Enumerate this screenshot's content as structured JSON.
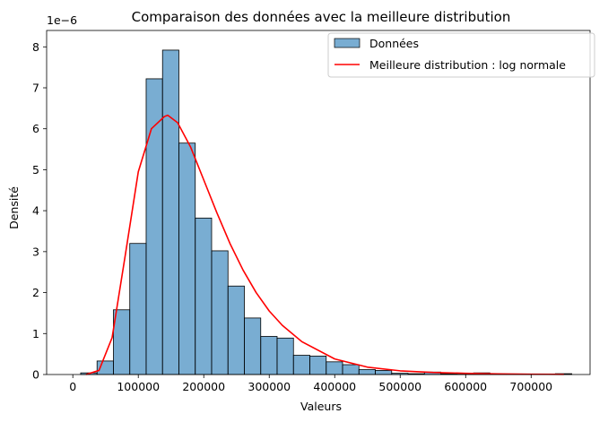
{
  "chart_data": {
    "type": "bar",
    "title": "Comparaison des données avec la meilleure distribution",
    "xlabel": "Valeurs",
    "ylabel": "Densité",
    "y_scale_label": "1e−6",
    "y_multiplier": 1e-06,
    "xlim": [
      -40000,
      790000
    ],
    "ylim": [
      0,
      8.4
    ],
    "x_ticks": [
      0,
      100000,
      200000,
      300000,
      400000,
      500000,
      600000,
      700000
    ],
    "y_ticks": [
      0,
      1,
      2,
      3,
      4,
      5,
      6,
      7,
      8
    ],
    "grid": false,
    "legend_position": "top-right",
    "bar_color": "#1f77b4",
    "bar_opacity": 0.6,
    "bar_edge_color": "#000000",
    "line_color": "#ff0000",
    "legend": [
      {
        "label": "Données",
        "kind": "patch"
      },
      {
        "label": "Meilleure distribution : log normale",
        "kind": "line"
      }
    ],
    "series": [
      {
        "name": "Données",
        "type": "histogram",
        "bin_edges": [
          12000,
          37000,
          62000,
          87000,
          112000,
          137000,
          162000,
          187000,
          212000,
          237000,
          262000,
          287000,
          312000,
          337000,
          362000,
          387000,
          412000,
          437000,
          462000,
          487000,
          512000,
          537000,
          562000,
          587000,
          612000,
          637000,
          662000,
          687000,
          712000,
          737000,
          762000
        ],
        "values": [
          0.04,
          0.33,
          1.58,
          3.2,
          7.22,
          7.92,
          5.65,
          3.82,
          3.02,
          2.16,
          1.38,
          0.93,
          0.89,
          0.47,
          0.45,
          0.31,
          0.24,
          0.12,
          0.1,
          0.03,
          0.02,
          0.06,
          0.02,
          0.01,
          0.04,
          0.01,
          0.01,
          0.01,
          0.01,
          0.02
        ]
      },
      {
        "name": "Meilleure distribution : log normale",
        "type": "line",
        "x": [
          20000,
          40000,
          60000,
          80000,
          100000,
          120000,
          140000,
          145000,
          160000,
          180000,
          200000,
          220000,
          240000,
          260000,
          280000,
          300000,
          320000,
          350000,
          400000,
          450000,
          500000,
          550000,
          600000,
          650000,
          700000,
          750000
        ],
        "y": [
          0.0,
          0.1,
          0.9,
          2.9,
          4.95,
          6.0,
          6.3,
          6.33,
          6.15,
          5.55,
          4.75,
          3.95,
          3.2,
          2.55,
          2.0,
          1.55,
          1.2,
          0.8,
          0.38,
          0.18,
          0.09,
          0.05,
          0.03,
          0.015,
          0.008,
          0.005
        ]
      }
    ]
  }
}
